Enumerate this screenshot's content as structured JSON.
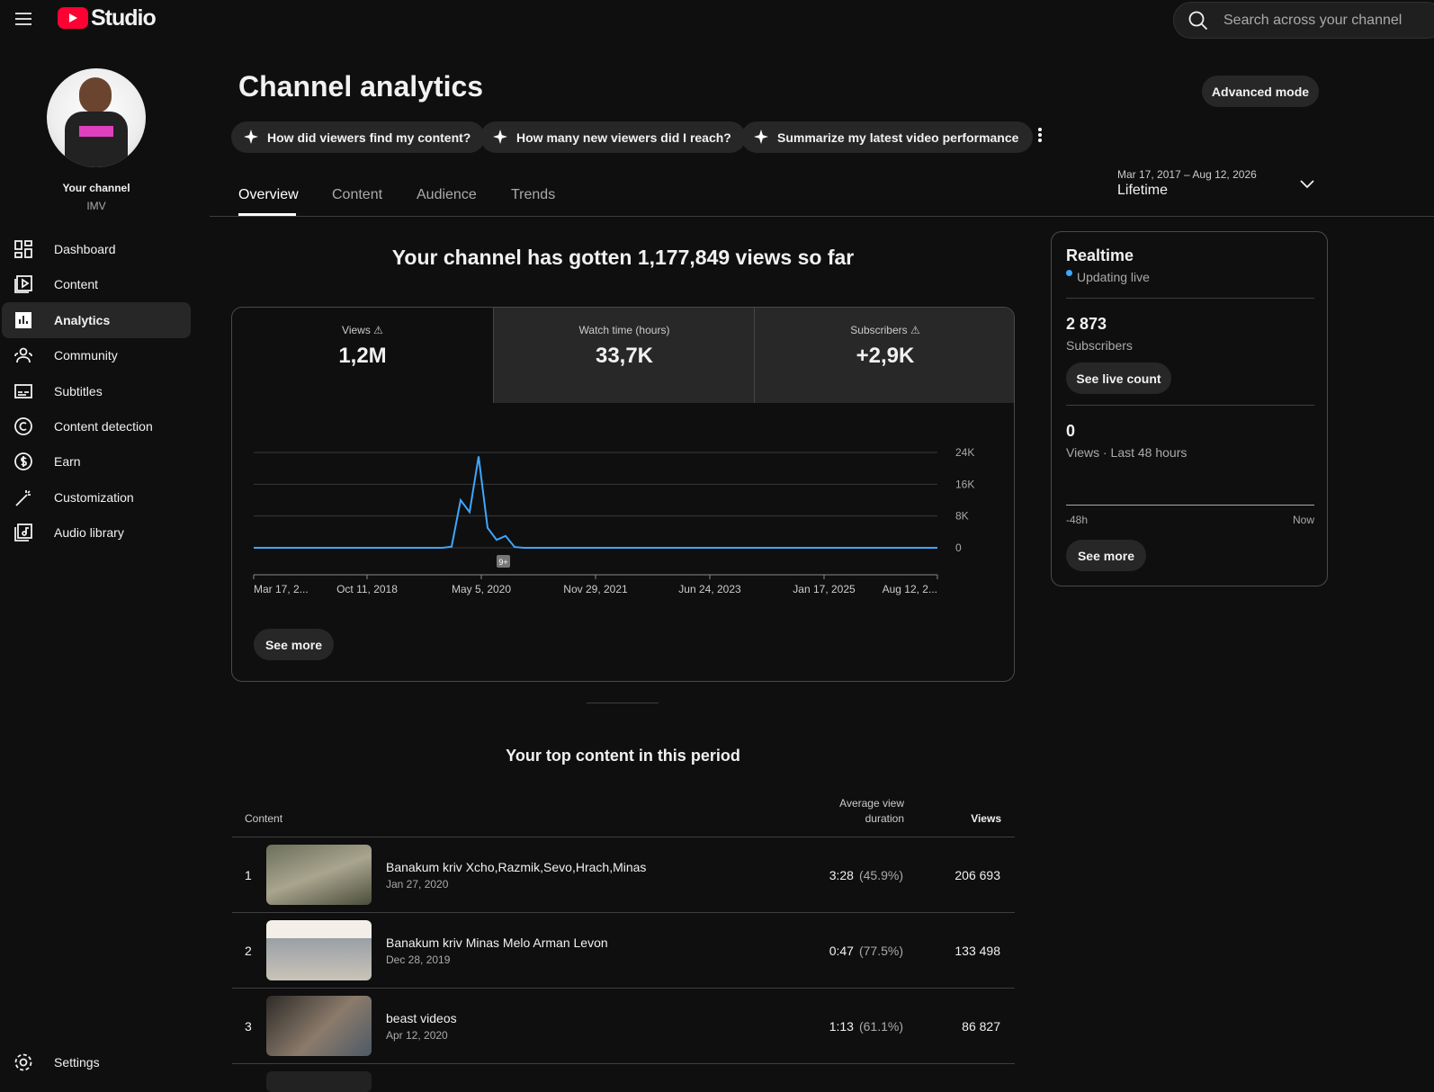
{
  "header": {
    "logo_text": "Studio",
    "search_placeholder": "Search across your channel"
  },
  "sidebar": {
    "channel_label": "Your channel",
    "channel_name": "IMV",
    "nav": [
      "Dashboard",
      "Content",
      "Analytics",
      "Community",
      "Subtitles",
      "Content detection",
      "Earn",
      "Customization",
      "Audio library"
    ],
    "settings": "Settings"
  },
  "page": {
    "title": "Channel analytics",
    "advanced_mode": "Advanced mode",
    "suggestions": [
      "How did viewers find my content?",
      "How many new viewers did I reach?",
      "Summarize my latest video performance"
    ],
    "tabs": [
      "Overview",
      "Content",
      "Audience",
      "Trends"
    ],
    "date_range": {
      "dates": "Mar 17, 2017 – Aug 12, 2026",
      "period": "Lifetime"
    }
  },
  "overview": {
    "headline": "Your channel has gotten 1,177,849 views so far",
    "metrics": [
      {
        "label": "Views",
        "value": "1,2M"
      },
      {
        "label": "Watch time (hours)",
        "value": "33,7K"
      },
      {
        "label": "Subscribers",
        "value": "+2,9K"
      }
    ],
    "see_more": "See more"
  },
  "chart": {
    "type": "line",
    "color": "#3ea6ff",
    "values": [
      0,
      0,
      0,
      0,
      0,
      0,
      0,
      0,
      0,
      0,
      0,
      0,
      0,
      0,
      0,
      0,
      0,
      0,
      0,
      0,
      0,
      0,
      300,
      12000,
      9000,
      23000,
      5000,
      2000,
      3000,
      200,
      0,
      0,
      0,
      0,
      0,
      0,
      0,
      0,
      0,
      0,
      0,
      0,
      0,
      0,
      0,
      0,
      0,
      0,
      0,
      0,
      0,
      0,
      0,
      0,
      0,
      0,
      0,
      0,
      0,
      0,
      0,
      0,
      0,
      0,
      0,
      0,
      0,
      0,
      0,
      0,
      0,
      0,
      0,
      0,
      0,
      0,
      0
    ],
    "ylim": [
      0,
      24000
    ],
    "yticks": [
      0,
      {
        "value": 8000,
        "label": "8K"
      },
      {
        "value": 16000,
        "label": "16K"
      },
      {
        "value": 24000,
        "label": "24K"
      }
    ],
    "x_tick_labels": [
      "Mar 17, 2...",
      "Oct 11, 2018",
      "May 5, 2020",
      "Nov 29, 2021",
      "Jun 24, 2023",
      "Jan 17, 2025",
      "Aug 12, 2..."
    ],
    "badge": "9+"
  },
  "realtime": {
    "title": "Realtime",
    "status": "Updating live",
    "subscribers_value": "2 873",
    "subscribers_label": "Subscribers",
    "see_live_count": "See live count",
    "views_value": "0",
    "views_label": "Views · Last 48 hours",
    "axis_start": "-48h",
    "axis_end": "Now",
    "see_more": "See more"
  },
  "top_content": {
    "title": "Your top content in this period",
    "columns": [
      "Content",
      "Average view duration",
      "Views"
    ],
    "rows": [
      {
        "rank": 1,
        "title": "Banakum kriv Xcho,Razmik,Sevo,Hrach,Minas",
        "date": "Jan 27, 2020",
        "avg_duration": "3:28",
        "avg_percent": "(45.9%)",
        "views": "206 693"
      },
      {
        "rank": 2,
        "title": "Banakum kriv Minas Melo Arman Levon",
        "date": "Dec 28, 2019",
        "avg_duration": "0:47",
        "avg_percent": "(77.5%)",
        "views": "133 498"
      },
      {
        "rank": 3,
        "title": "beast videos",
        "date": "Apr 12, 2020",
        "avg_duration": "1:13",
        "avg_percent": "(61.1%)",
        "views": "86 827"
      }
    ]
  }
}
